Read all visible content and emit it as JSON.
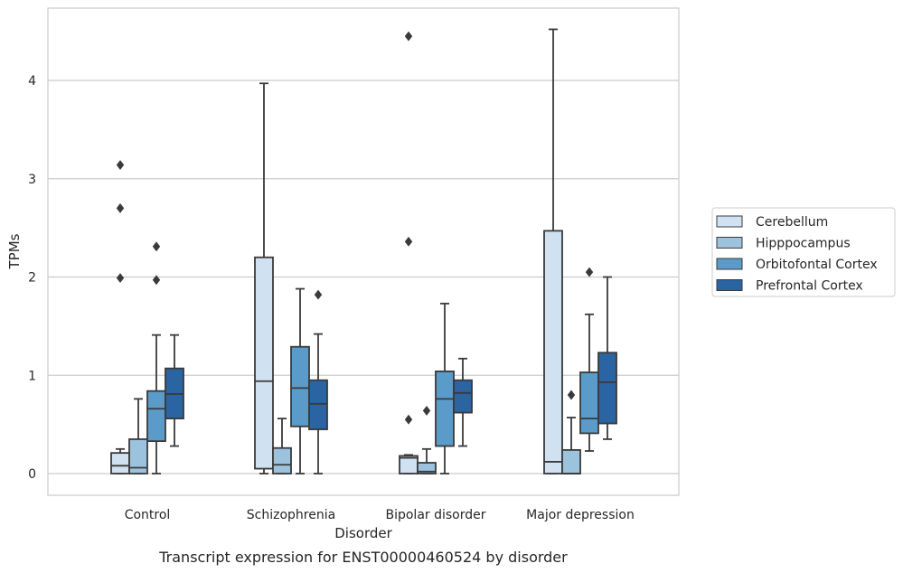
{
  "chart_data": {
    "type": "box",
    "title": "Transcript expression for ENST00000460524 by disorder",
    "xlabel": "Disorder",
    "ylabel": "TPMs",
    "ylim": [
      -0.22,
      4.75
    ],
    "yticks": [
      0,
      1,
      2,
      3,
      4
    ],
    "grid": "horizontal",
    "legend_position": "right",
    "categories": [
      "Control",
      "Schizophrenia",
      "Bipolar disorder",
      "Major depression"
    ],
    "series": [
      {
        "name": "Cerebellum",
        "color": "#d0e1f2",
        "boxes": [
          {
            "whisker_low": 0,
            "q1": 0,
            "median": 0.08,
            "q3": 0.21,
            "whisker_high": 0.25,
            "outliers": [
              1.99,
              2.7,
              3.14
            ]
          },
          {
            "whisker_low": 0,
            "q1": 0.05,
            "median": 0.94,
            "q3": 2.2,
            "whisker_high": 3.97,
            "outliers": []
          },
          {
            "whisker_low": 0,
            "q1": 0,
            "median": 0.16,
            "q3": 0.18,
            "whisker_high": 0.19,
            "outliers": [
              0.55,
              2.36,
              4.45
            ]
          },
          {
            "whisker_low": 0,
            "q1": 0,
            "median": 0.12,
            "q3": 2.47,
            "whisker_high": 4.52,
            "outliers": []
          }
        ]
      },
      {
        "name": "Hipppocampus",
        "color": "#9cc3de",
        "boxes": [
          {
            "whisker_low": 0,
            "q1": 0,
            "median": 0.06,
            "q3": 0.35,
            "whisker_high": 0.76,
            "outliers": []
          },
          {
            "whisker_low": 0,
            "q1": 0,
            "median": 0.09,
            "q3": 0.26,
            "whisker_high": 0.56,
            "outliers": []
          },
          {
            "whisker_low": 0,
            "q1": 0,
            "median": 0.02,
            "q3": 0.11,
            "whisker_high": 0.25,
            "outliers": [
              0.64
            ]
          },
          {
            "whisker_low": 0,
            "q1": 0,
            "median": 0.0,
            "q3": 0.24,
            "whisker_high": 0.57,
            "outliers": [
              0.8
            ]
          }
        ]
      },
      {
        "name": "Orbitofontal Cortex",
        "color": "#5a9bca",
        "boxes": [
          {
            "whisker_low": 0,
            "q1": 0.33,
            "median": 0.66,
            "q3": 0.84,
            "whisker_high": 1.41,
            "outliers": [
              1.97,
              2.31
            ]
          },
          {
            "whisker_low": 0,
            "q1": 0.48,
            "median": 0.87,
            "q3": 1.29,
            "whisker_high": 1.88,
            "outliers": []
          },
          {
            "whisker_low": 0,
            "q1": 0.28,
            "median": 0.76,
            "q3": 1.04,
            "whisker_high": 1.73,
            "outliers": []
          },
          {
            "whisker_low": 0.23,
            "q1": 0.41,
            "median": 0.56,
            "q3": 1.03,
            "whisker_high": 1.62,
            "outliers": [
              2.05
            ]
          }
        ]
      },
      {
        "name": "Prefrontal Cortex",
        "color": "#2a64a3",
        "boxes": [
          {
            "whisker_low": 0.28,
            "q1": 0.56,
            "median": 0.81,
            "q3": 1.07,
            "whisker_high": 1.41,
            "outliers": []
          },
          {
            "whisker_low": 0,
            "q1": 0.45,
            "median": 0.71,
            "q3": 0.95,
            "whisker_high": 1.42,
            "outliers": [
              1.82
            ]
          },
          {
            "whisker_low": 0.28,
            "q1": 0.62,
            "median": 0.82,
            "q3": 0.95,
            "whisker_high": 1.17,
            "outliers": []
          },
          {
            "whisker_low": 0.35,
            "q1": 0.51,
            "median": 0.93,
            "q3": 1.23,
            "whisker_high": 2.0,
            "outliers": []
          }
        ]
      }
    ]
  }
}
